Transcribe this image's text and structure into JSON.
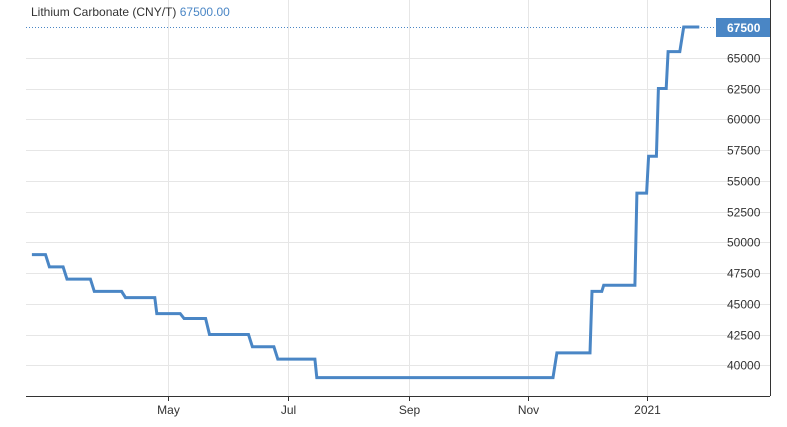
{
  "title": {
    "name": "Lithium Carbonate (CNY/T)",
    "value": "67500.00"
  },
  "chart_data": {
    "type": "line",
    "title": "Lithium Carbonate (CNY/T)",
    "xlabel": "",
    "ylabel": "",
    "ylim": [
      37500,
      67500
    ],
    "y_ticks": [
      40000,
      42500,
      45000,
      47500,
      50000,
      52500,
      55000,
      57500,
      60000,
      62500,
      65000
    ],
    "x_ticks": [
      {
        "label": "May",
        "date": "2020-05-01"
      },
      {
        "label": "Jul",
        "date": "2020-07-01"
      },
      {
        "label": "Sep",
        "date": "2020-09-01"
      },
      {
        "label": "Nov",
        "date": "2020-11-01"
      },
      {
        "label": "2021",
        "date": "2021-01-01"
      }
    ],
    "last_value": 67500,
    "last_value_label": "67500",
    "grid": true,
    "legend": "none",
    "series": [
      {
        "values": [
          [
            "2020-02-21",
            49000
          ],
          [
            "2020-02-28",
            49000
          ],
          [
            "2020-03-01",
            48000
          ],
          [
            "2020-03-08",
            48000
          ],
          [
            "2020-03-10",
            47000
          ],
          [
            "2020-03-22",
            47000
          ],
          [
            "2020-03-24",
            46000
          ],
          [
            "2020-04-07",
            46000
          ],
          [
            "2020-04-09",
            45500
          ],
          [
            "2020-04-24",
            45500
          ],
          [
            "2020-04-25",
            44200
          ],
          [
            "2020-05-07",
            44200
          ],
          [
            "2020-05-09",
            43800
          ],
          [
            "2020-05-20",
            43800
          ],
          [
            "2020-05-22",
            42500
          ],
          [
            "2020-06-11",
            42500
          ],
          [
            "2020-06-13",
            41500
          ],
          [
            "2020-06-24",
            41500
          ],
          [
            "2020-06-26",
            40500
          ],
          [
            "2020-07-15",
            40500
          ],
          [
            "2020-07-16",
            39000
          ],
          [
            "2020-11-14",
            39000
          ],
          [
            "2020-11-16",
            41000
          ],
          [
            "2020-12-03",
            41000
          ],
          [
            "2020-12-04",
            46000
          ],
          [
            "2020-12-09",
            46000
          ],
          [
            "2020-12-10",
            46500
          ],
          [
            "2020-12-26",
            46500
          ],
          [
            "2020-12-27",
            54000
          ],
          [
            "2021-01-01",
            54000
          ],
          [
            "2021-01-02",
            57000
          ],
          [
            "2021-01-06",
            57000
          ],
          [
            "2021-01-07",
            62500
          ],
          [
            "2021-01-11",
            62500
          ],
          [
            "2021-01-12",
            65500
          ],
          [
            "2021-01-18",
            65500
          ],
          [
            "2021-01-20",
            67500
          ],
          [
            "2021-01-28",
            67500
          ]
        ]
      }
    ],
    "colors": {
      "line": "#4a86c5",
      "grid": "#e6e6e6",
      "axis": "#333333",
      "label": "#333333",
      "dotted_line": "#4a86c5",
      "last_value_bg": "#4a86c5",
      "last_value_text": "#ffffff"
    }
  }
}
